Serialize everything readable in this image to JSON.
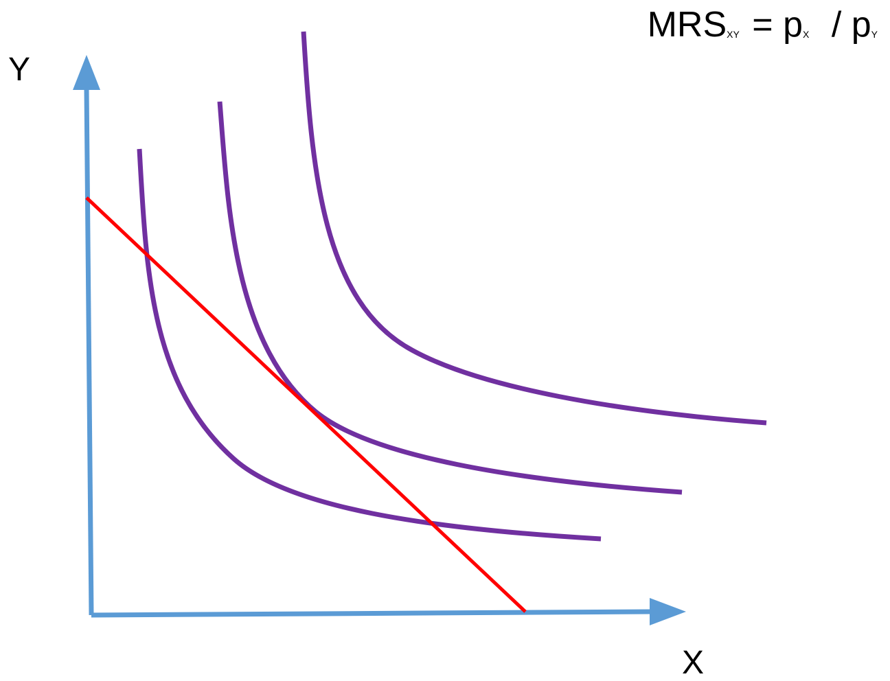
{
  "formula": {
    "lhs": "MRS",
    "lhs_sub": "XY",
    "eq": "=",
    "px": "p",
    "px_sub": "X",
    "slash": "/",
    "py": "p",
    "py_sub": "Y"
  },
  "axes": {
    "x_label": "X",
    "y_label": "Y"
  },
  "colors": {
    "axis": "#5b9bd5",
    "indifference_curve": "#7030a0",
    "budget_line": "#ff0000",
    "text": "#000000"
  },
  "indifference_curves": [
    {
      "level": "low"
    },
    {
      "level": "middle",
      "tangent_to_budget_line": true
    },
    {
      "level": "high"
    }
  ],
  "budget_line": {
    "intersects_low_curve": 2,
    "tangent_to": "middle"
  }
}
